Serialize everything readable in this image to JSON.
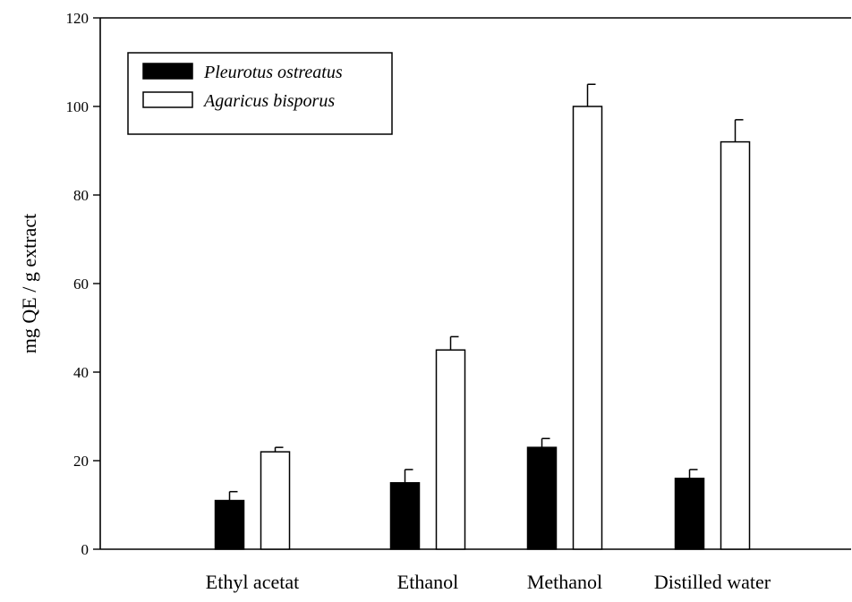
{
  "chart_data": {
    "type": "bar",
    "title": "",
    "xlabel": "",
    "ylabel": "mg QE / g extract",
    "ylim": [
      0,
      120
    ],
    "yticks": [
      0,
      20,
      40,
      60,
      80,
      100,
      120
    ],
    "categories": [
      "Ethyl acetat",
      "Ethanol",
      "Methanol",
      "Distilled water"
    ],
    "series": [
      {
        "name": "Pleurotus ostreatus",
        "fill": "#000000",
        "values": [
          11,
          15,
          23,
          16
        ],
        "errors": [
          2,
          3,
          2,
          2
        ]
      },
      {
        "name": "Agaricus bisporus",
        "fill": "#ffffff",
        "values": [
          22,
          45,
          100,
          92
        ],
        "errors": [
          1,
          3,
          5,
          5
        ]
      }
    ],
    "legend_position": "top-left",
    "grid": false
  }
}
